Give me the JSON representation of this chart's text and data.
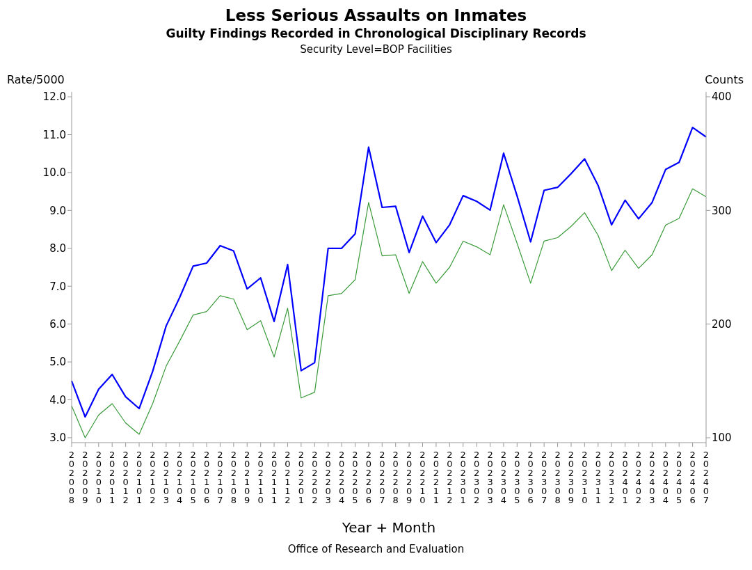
{
  "chart_data": {
    "type": "line",
    "title": "Less Serious Assaults on Inmates",
    "subtitle": "Guilty Findings Recorded in Chronological Disciplinary Records",
    "annotations": [
      "Security Level=BOP Facilities",
      "Office of Research and Evaluation"
    ],
    "xlabel": "Year + Month",
    "ylabel": "Rate/5000",
    "y2label": "Counts",
    "categories": [
      "202008",
      "202009",
      "202010",
      "202011",
      "202012",
      "202101",
      "202102",
      "202103",
      "202104",
      "202105",
      "202106",
      "202107",
      "202108",
      "202109",
      "202110",
      "202111",
      "202112",
      "202201",
      "202202",
      "202203",
      "202204",
      "202205",
      "202206",
      "202207",
      "202208",
      "202209",
      "202210",
      "202211",
      "202212",
      "202301",
      "202302",
      "202303",
      "202304",
      "202305",
      "202306",
      "202307",
      "202308",
      "202309",
      "202310",
      "202311",
      "202312",
      "202401",
      "202402",
      "202403",
      "202404",
      "202405",
      "202406",
      "202407"
    ],
    "series": [
      {
        "color": "#0000ff",
        "values": [
          4.5,
          3.55,
          4.28,
          4.67,
          4.08,
          3.77,
          4.75,
          5.95,
          6.7,
          7.53,
          7.61,
          8.07,
          7.93,
          6.93,
          7.22,
          6.07,
          7.57,
          4.77,
          4.98,
          8.0,
          8.0,
          8.38,
          10.67,
          9.08,
          9.11,
          7.89,
          8.85,
          8.15,
          8.62,
          9.39,
          9.24,
          9.01,
          10.51,
          9.38,
          8.17,
          9.53,
          9.61,
          9.97,
          10.36,
          9.66,
          8.62,
          9.27,
          8.78,
          9.21,
          10.08,
          10.27,
          11.19,
          10.94
        ]
      },
      {
        "color": "#3a9a3a",
        "axis": "y2",
        "values": [
          128,
          100,
          120,
          130,
          113,
          103,
          130,
          163,
          185,
          208,
          211,
          225,
          222,
          195,
          203,
          171,
          214,
          135,
          140,
          225,
          227,
          239,
          307,
          260,
          261,
          227,
          255,
          236,
          250,
          273,
          268,
          261,
          305,
          271,
          236,
          273,
          276,
          286,
          298,
          278,
          247,
          265,
          249,
          261,
          287,
          293,
          319,
          312
        ]
      }
    ],
    "ylim": [
      2.87,
      12.13
    ],
    "yticks": [
      {
        "value": 3,
        "label": "3.0"
      },
      {
        "value": 4,
        "label": "4.0"
      },
      {
        "value": 5,
        "label": "5.0"
      },
      {
        "value": 6,
        "label": "6.0"
      },
      {
        "value": 7,
        "label": "7.0"
      },
      {
        "value": 8,
        "label": "8.0"
      },
      {
        "value": 9,
        "label": "9.0"
      },
      {
        "value": 10,
        "label": "10.0"
      },
      {
        "value": 11,
        "label": "11.0"
      },
      {
        "value": 12,
        "label": "12.0"
      }
    ],
    "y2lim": [
      95.7,
      404.3
    ],
    "y2ticks": [
      100,
      200,
      300,
      400
    ],
    "grid": false,
    "legend": false,
    "marker": "none",
    "line_style": "solid"
  }
}
